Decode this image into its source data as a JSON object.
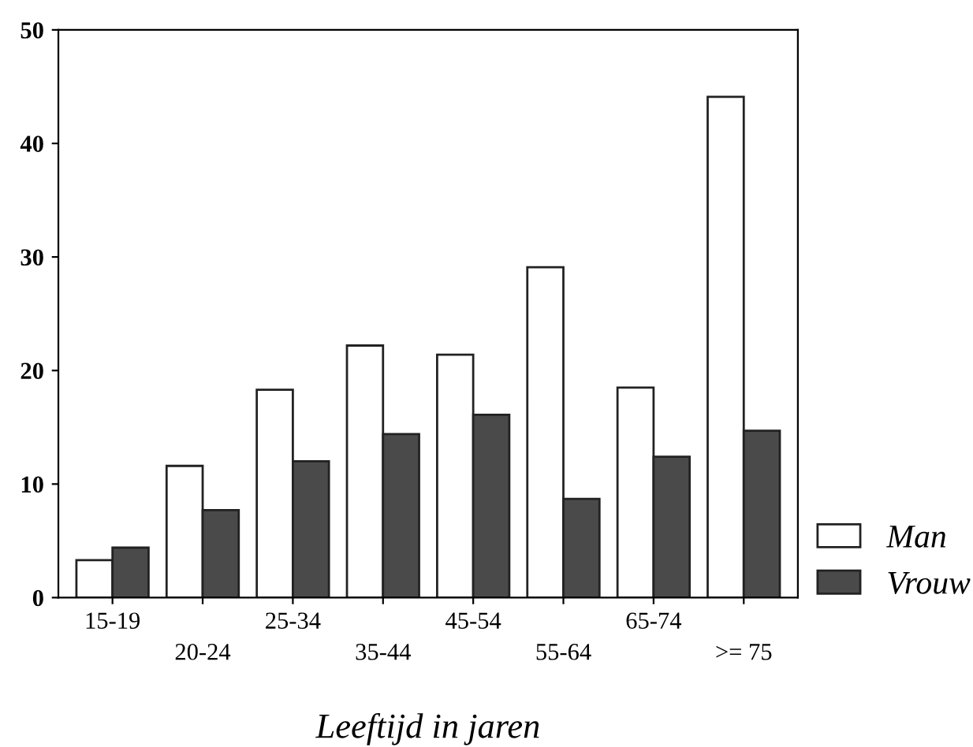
{
  "chart_data": {
    "type": "bar",
    "xlabel": "Leeftijd in jaren",
    "categories": [
      "15-19",
      "20-24",
      "25-34",
      "35-44",
      "45-54",
      "55-64",
      "65-74",
      ">= 75"
    ],
    "series": [
      {
        "name": "Man",
        "color": "#ffffff",
        "values": [
          3.3,
          11.6,
          18.3,
          22.2,
          21.4,
          29.1,
          18.5,
          44.1
        ]
      },
      {
        "name": "Vrouw",
        "color": "#4a4a4a",
        "values": [
          4.4,
          7.7,
          12.0,
          14.4,
          16.1,
          8.7,
          12.4,
          14.7
        ]
      }
    ],
    "ylim": [
      0,
      50
    ],
    "yticks": [
      0,
      10,
      20,
      30,
      40,
      50
    ],
    "grid": false,
    "legend": "bottom right"
  }
}
